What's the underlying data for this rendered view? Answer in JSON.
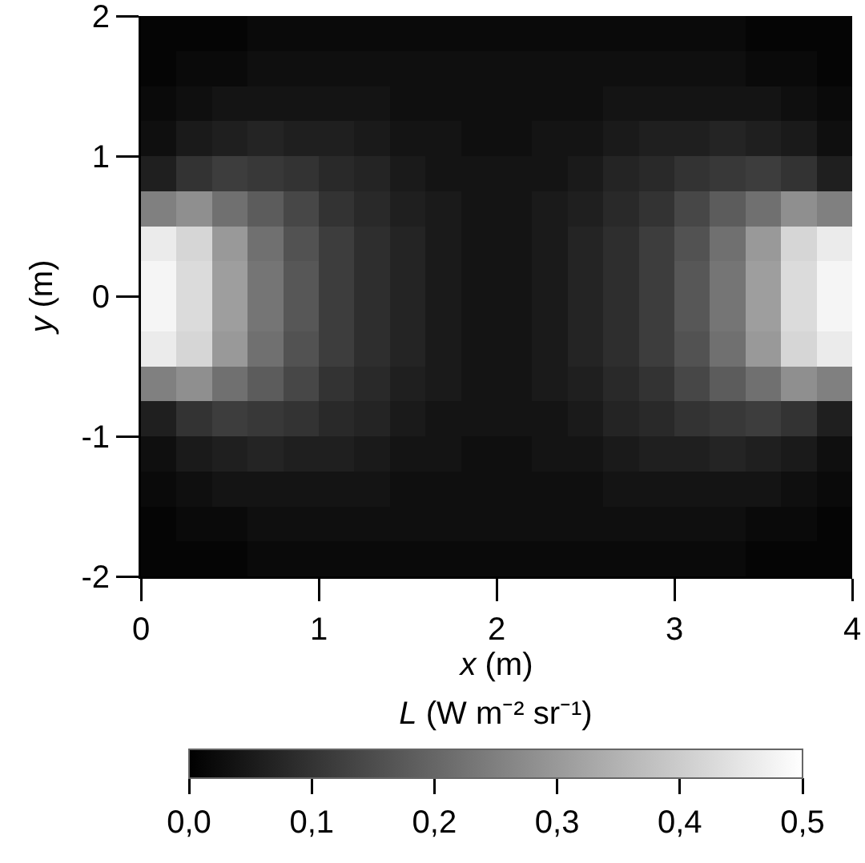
{
  "chart_data": {
    "type": "heatmap",
    "xlabel": "x (m)",
    "ylabel": "y (m)",
    "clabel": "L (W m⁻² sr⁻¹)",
    "x": [
      0.1,
      0.3,
      0.5,
      0.7,
      0.9,
      1.1,
      1.3,
      1.5,
      1.7,
      1.9,
      2.1,
      2.3,
      2.5,
      2.7,
      2.9,
      3.1,
      3.3,
      3.5,
      3.7,
      3.9
    ],
    "cells": [
      [
        0.01,
        0.01,
        0.01,
        0.02,
        0.02,
        0.02,
        0.02,
        0.02,
        0.02,
        0.02,
        0.02,
        0.02,
        0.02,
        0.02,
        0.02,
        0.02,
        0.02,
        0.01,
        0.01,
        0.01
      ],
      [
        0.01,
        0.02,
        0.02,
        0.03,
        0.03,
        0.03,
        0.03,
        0.03,
        0.03,
        0.03,
        0.03,
        0.03,
        0.03,
        0.03,
        0.03,
        0.03,
        0.03,
        0.02,
        0.02,
        0.01
      ],
      [
        0.02,
        0.03,
        0.04,
        0.04,
        0.04,
        0.04,
        0.04,
        0.03,
        0.03,
        0.03,
        0.03,
        0.03,
        0.03,
        0.04,
        0.04,
        0.04,
        0.04,
        0.04,
        0.03,
        0.02
      ],
      [
        0.03,
        0.05,
        0.06,
        0.07,
        0.06,
        0.06,
        0.05,
        0.04,
        0.04,
        0.03,
        0.03,
        0.04,
        0.04,
        0.05,
        0.06,
        0.06,
        0.07,
        0.06,
        0.05,
        0.03
      ],
      [
        0.06,
        0.1,
        0.12,
        0.11,
        0.1,
        0.08,
        0.07,
        0.05,
        0.04,
        0.04,
        0.04,
        0.04,
        0.05,
        0.07,
        0.08,
        0.1,
        0.11,
        0.12,
        0.1,
        0.06
      ],
      [
        0.25,
        0.28,
        0.22,
        0.18,
        0.14,
        0.1,
        0.08,
        0.06,
        0.05,
        0.04,
        0.04,
        0.05,
        0.06,
        0.08,
        0.1,
        0.14,
        0.18,
        0.22,
        0.28,
        0.25
      ],
      [
        0.46,
        0.42,
        0.3,
        0.22,
        0.16,
        0.12,
        0.09,
        0.07,
        0.05,
        0.04,
        0.04,
        0.05,
        0.07,
        0.09,
        0.12,
        0.16,
        0.22,
        0.3,
        0.42,
        0.46
      ],
      [
        0.48,
        0.43,
        0.31,
        0.23,
        0.17,
        0.12,
        0.09,
        0.07,
        0.05,
        0.04,
        0.04,
        0.05,
        0.07,
        0.09,
        0.12,
        0.17,
        0.23,
        0.31,
        0.43,
        0.48
      ],
      [
        0.48,
        0.43,
        0.31,
        0.23,
        0.17,
        0.12,
        0.09,
        0.07,
        0.05,
        0.04,
        0.04,
        0.05,
        0.07,
        0.09,
        0.12,
        0.17,
        0.23,
        0.31,
        0.43,
        0.48
      ],
      [
        0.46,
        0.42,
        0.3,
        0.22,
        0.16,
        0.12,
        0.09,
        0.07,
        0.05,
        0.04,
        0.04,
        0.05,
        0.07,
        0.09,
        0.12,
        0.16,
        0.22,
        0.3,
        0.42,
        0.46
      ],
      [
        0.25,
        0.28,
        0.22,
        0.18,
        0.14,
        0.1,
        0.08,
        0.06,
        0.05,
        0.04,
        0.04,
        0.05,
        0.06,
        0.08,
        0.1,
        0.14,
        0.18,
        0.22,
        0.28,
        0.25
      ],
      [
        0.06,
        0.1,
        0.12,
        0.11,
        0.1,
        0.08,
        0.07,
        0.05,
        0.04,
        0.04,
        0.04,
        0.04,
        0.05,
        0.07,
        0.08,
        0.1,
        0.11,
        0.12,
        0.1,
        0.06
      ],
      [
        0.03,
        0.05,
        0.06,
        0.07,
        0.06,
        0.06,
        0.05,
        0.04,
        0.04,
        0.03,
        0.03,
        0.04,
        0.04,
        0.05,
        0.06,
        0.06,
        0.07,
        0.06,
        0.05,
        0.03
      ],
      [
        0.02,
        0.03,
        0.04,
        0.04,
        0.04,
        0.04,
        0.04,
        0.03,
        0.03,
        0.03,
        0.03,
        0.03,
        0.03,
        0.04,
        0.04,
        0.04,
        0.04,
        0.04,
        0.03,
        0.02
      ],
      [
        0.01,
        0.02,
        0.02,
        0.03,
        0.03,
        0.03,
        0.03,
        0.03,
        0.03,
        0.03,
        0.03,
        0.03,
        0.03,
        0.03,
        0.03,
        0.03,
        0.03,
        0.02,
        0.02,
        0.01
      ],
      [
        0.01,
        0.01,
        0.01,
        0.02,
        0.02,
        0.02,
        0.02,
        0.02,
        0.02,
        0.02,
        0.02,
        0.02,
        0.02,
        0.02,
        0.02,
        0.02,
        0.02,
        0.01,
        0.01,
        0.01
      ]
    ],
    "xlim": [
      0,
      4
    ],
    "xticks": [
      0,
      1,
      2,
      3,
      4
    ],
    "ylim": [
      -2,
      2
    ],
    "yticks": [
      -2,
      -1,
      0,
      1,
      2
    ],
    "clim": [
      0,
      0.5
    ],
    "cticks": [
      {
        "value": 0,
        "label": "0,0"
      },
      {
        "value": 0.1,
        "label": "0,1"
      },
      {
        "value": 0.2,
        "label": "0,2"
      },
      {
        "value": 0.3,
        "label": "0,3"
      },
      {
        "value": 0.4,
        "label": "0,4"
      },
      {
        "value": 0.5,
        "label": "0,5"
      }
    ]
  }
}
